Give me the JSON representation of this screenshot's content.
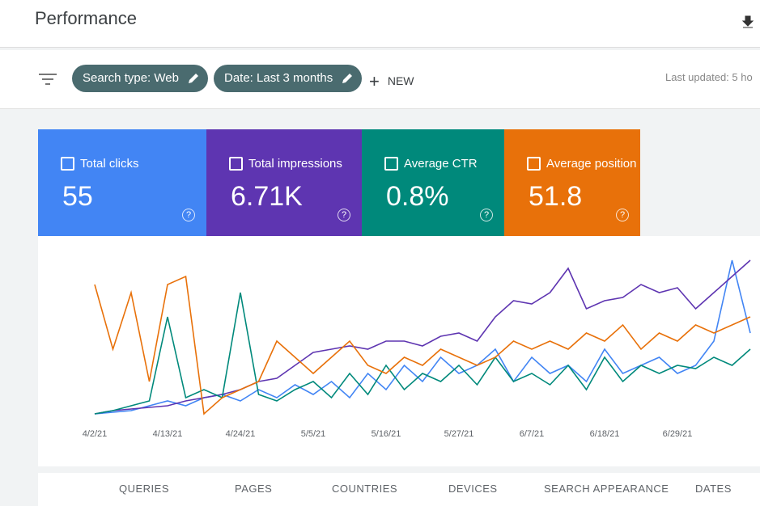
{
  "header": {
    "title": "Performance"
  },
  "filters": {
    "chips": [
      "Search type: Web",
      "Date: Last 3 months"
    ],
    "new": "NEW",
    "last_updated": "Last updated: 5 ho"
  },
  "metrics": [
    {
      "label": "Total clicks",
      "value": "55"
    },
    {
      "label": "Total impressions",
      "value": "6.71K"
    },
    {
      "label": "Average CTR",
      "value": "0.8%"
    },
    {
      "label": "Average position",
      "value": "51.8"
    }
  ],
  "chart_data": {
    "type": "line",
    "categories": [
      "4/2/21",
      null,
      null,
      null,
      "4/13/21",
      null,
      null,
      null,
      "4/24/21",
      null,
      null,
      null,
      "5/5/21",
      null,
      null,
      null,
      "5/16/21",
      null,
      null,
      null,
      "5/27/21",
      null,
      null,
      null,
      "6/7/21",
      null,
      null,
      null,
      "6/18/21",
      null,
      null,
      null,
      "6/29/21",
      null,
      null,
      null,
      null
    ],
    "ylim": [
      0,
      100
    ],
    "series": [
      {
        "name": "Total clicks",
        "color": "#4285f4",
        "values": [
          0,
          1,
          2,
          5,
          8,
          5,
          10,
          12,
          8,
          15,
          10,
          18,
          12,
          20,
          10,
          25,
          15,
          30,
          20,
          35,
          25,
          30,
          40,
          20,
          35,
          25,
          30,
          20,
          40,
          25,
          30,
          35,
          25,
          30,
          45,
          95,
          50
        ]
      },
      {
        "name": "Total impressions",
        "color": "#5e35b1",
        "values": [
          0,
          2,
          3,
          4,
          5,
          8,
          10,
          12,
          15,
          20,
          22,
          30,
          38,
          40,
          42,
          40,
          45,
          45,
          42,
          48,
          50,
          45,
          60,
          70,
          68,
          75,
          90,
          65,
          70,
          72,
          80,
          75,
          78,
          65,
          75,
          85,
          95
        ]
      },
      {
        "name": "Average CTR",
        "color": "#00897b",
        "values": [
          0,
          2,
          5,
          8,
          60,
          10,
          15,
          10,
          75,
          12,
          8,
          15,
          20,
          10,
          25,
          12,
          30,
          15,
          25,
          20,
          30,
          18,
          35,
          20,
          25,
          18,
          30,
          15,
          35,
          20,
          30,
          25,
          30,
          28,
          35,
          30,
          40
        ]
      },
      {
        "name": "Average position",
        "color": "#e8710a",
        "values": [
          80,
          40,
          75,
          20,
          80,
          85,
          0,
          10,
          15,
          20,
          45,
          35,
          25,
          35,
          45,
          30,
          25,
          35,
          30,
          40,
          35,
          30,
          35,
          45,
          40,
          45,
          40,
          50,
          45,
          55,
          40,
          50,
          45,
          55,
          50,
          55,
          60
        ]
      }
    ]
  },
  "tabs": [
    "QUERIES",
    "PAGES",
    "COUNTRIES",
    "DEVICES",
    "SEARCH APPEARANCE",
    "DATES"
  ]
}
